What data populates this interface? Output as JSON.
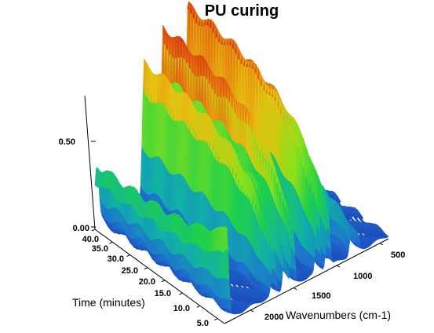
{
  "chart_data": {
    "type": "surface-3d",
    "title": "PU curing",
    "xlabel": "Wavenumbers (cm-1)",
    "ylabel": "Time (minutes)",
    "zlabel": "",
    "x_ticks": [
      "500",
      "1000",
      "1500",
      "2000"
    ],
    "y_ticks": [
      "5.0",
      "10.0",
      "15.0",
      "20.0",
      "25.0",
      "30.0",
      "35.0",
      "40.0"
    ],
    "z_ticks": [
      "0.00",
      "0.50"
    ],
    "xlim": [
      400,
      2300
    ],
    "ylim": [
      3,
      40
    ],
    "zlim": [
      0,
      0.62
    ],
    "colormap": [
      "#1a1aa0",
      "#1f6fd0",
      "#10b0a8",
      "#1ed04a",
      "#8ce01a",
      "#e8c010",
      "#e05010",
      "#c01e10"
    ],
    "peaks": [
      {
        "wavenumber": 2280,
        "absorbance": 0.25
      },
      {
        "wavenumber": 1730,
        "absorbance": 0.4
      },
      {
        "wavenumber": 1600,
        "absorbance": 0.34
      },
      {
        "wavenumber": 1510,
        "absorbance": 0.48
      },
      {
        "wavenumber": 1220,
        "absorbance": 0.52
      },
      {
        "wavenumber": 1100,
        "absorbance": 0.47
      },
      {
        "wavenumber": 830,
        "absorbance": 0.18
      },
      {
        "wavenumber": 760,
        "absorbance": 0.14
      }
    ]
  }
}
